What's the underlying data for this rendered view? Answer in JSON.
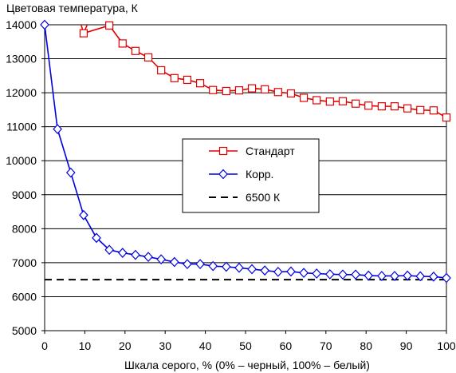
{
  "chart_data": {
    "type": "line",
    "title": "",
    "ylabel": "Цветовая температура, К",
    "xlabel": "Шкала серого, % (0% – черный, 100% – белый)",
    "xlim": [
      0,
      100
    ],
    "ylim": [
      5000,
      14000
    ],
    "x_ticks": [
      0,
      10,
      20,
      30,
      40,
      50,
      60,
      70,
      80,
      90,
      100
    ],
    "y_ticks": [
      5000,
      6000,
      7000,
      8000,
      9000,
      10000,
      11000,
      12000,
      13000,
      14000
    ],
    "grid": "horizontal",
    "legend_position": "center-right",
    "series": [
      {
        "name": "Стандарт",
        "color": "#e00000",
        "marker": "square",
        "line_style": "solid",
        "x": [
          9.7,
          16.1,
          19.4,
          22.6,
          25.8,
          29,
          32.3,
          35.5,
          38.7,
          41.9,
          45.2,
          48.4,
          51.6,
          54.8,
          58.1,
          61.3,
          64.5,
          67.7,
          71,
          74.2,
          77.4,
          80.6,
          83.9,
          87.1,
          90.3,
          93.5,
          96.8,
          100
        ],
        "y": [
          13750,
          13980,
          13450,
          13230,
          13040,
          12660,
          12430,
          12380,
          12280,
          12080,
          12050,
          12070,
          12130,
          12100,
          12020,
          11980,
          11850,
          11780,
          11740,
          11750,
          11680,
          11620,
          11600,
          11600,
          11540,
          11490,
          11480,
          11270
        ]
      },
      {
        "name": "Корр.",
        "color": "#0000e0",
        "marker": "diamond",
        "line_style": "solid",
        "x": [
          0,
          3.2,
          6.5,
          9.7,
          12.9,
          16.1,
          19.4,
          22.6,
          25.8,
          29,
          32.3,
          35.5,
          38.7,
          41.9,
          45.2,
          48.4,
          51.6,
          54.8,
          58.1,
          61.3,
          64.5,
          67.7,
          71,
          74.2,
          77.4,
          80.6,
          83.9,
          87.1,
          90.3,
          93.5,
          96.8,
          100
        ],
        "y": [
          14000,
          10930,
          9650,
          8400,
          7730,
          7380,
          7290,
          7230,
          7170,
          7100,
          7020,
          6960,
          6960,
          6900,
          6880,
          6850,
          6810,
          6770,
          6730,
          6740,
          6700,
          6680,
          6660,
          6650,
          6650,
          6620,
          6610,
          6610,
          6620,
          6600,
          6590,
          6550
        ]
      },
      {
        "name": "6500 К",
        "color": "#000000",
        "marker": "none",
        "line_style": "dashed",
        "x": [
          0,
          100
        ],
        "y": [
          6500,
          6500
        ]
      }
    ]
  }
}
